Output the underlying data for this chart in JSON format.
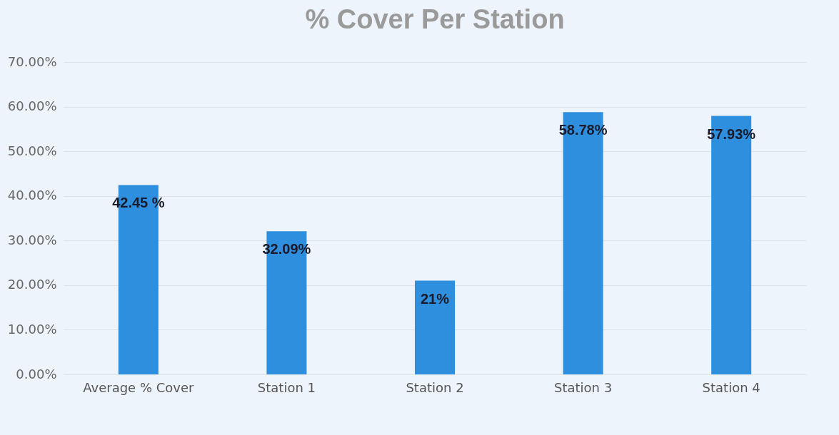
{
  "chart_data": {
    "type": "bar",
    "title": "% Cover Per Station",
    "categories": [
      "Average % Cover",
      "Station 1",
      "Station 2",
      "Station 3",
      "Station 4"
    ],
    "values": [
      42.45,
      32.09,
      21,
      58.78,
      57.93
    ],
    "value_labels": [
      "42.45 %",
      "32.09%",
      "21%",
      "58.78%",
      "57.93%"
    ],
    "color": "#2f8fdf",
    "ylim": [
      0,
      70
    ],
    "yticks": [
      {
        "value": 0,
        "label": "0.00%"
      },
      {
        "value": 10,
        "label": "10.00%"
      },
      {
        "value": 20,
        "label": "20.00%"
      },
      {
        "value": 30,
        "label": "30.00%"
      },
      {
        "value": 40,
        "label": "40.00%"
      },
      {
        "value": 50,
        "label": "50.00%"
      },
      {
        "value": 60,
        "label": "60.00%"
      },
      {
        "value": 70,
        "label": "70.00%"
      }
    ],
    "grid": "y"
  }
}
